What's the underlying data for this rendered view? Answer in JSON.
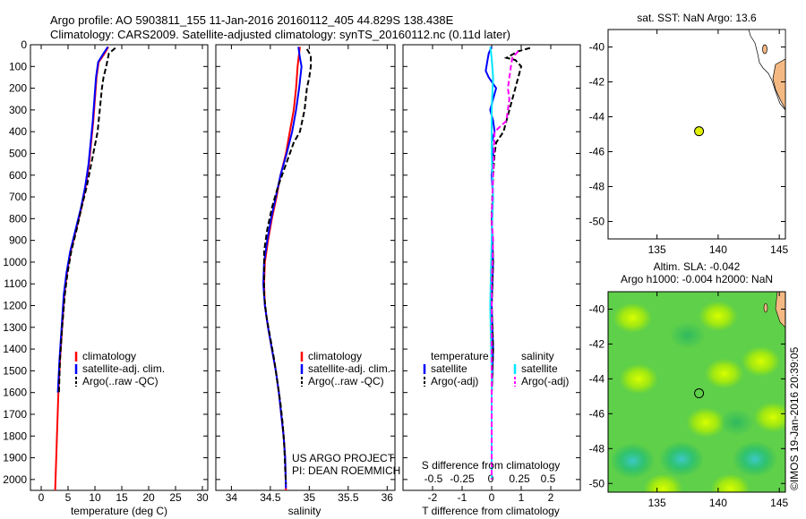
{
  "header": {
    "line1": "Argo profile: AO 5903811_155 11-Jan-2016 20160112_405 44.829S 138.438E",
    "line2": "Climatology: CARS2009. Satellite-adjusted climatology: synTS_20160112.nc (0.11d later)"
  },
  "colors": {
    "climatology": "#ff0000",
    "satellite": "#0000ff",
    "argo": "#000000",
    "satellite_s": "#00e5ff",
    "argo_s": "#ff00ff",
    "land": "#f4b983",
    "marker": "#e0f000"
  },
  "chart_data": [
    {
      "type": "line",
      "id": "temperature",
      "xlabel": "temperature (deg C)",
      "ylabel": "",
      "xlim": [
        -2,
        31
      ],
      "ylim": [
        2050,
        0
      ],
      "xticks": [
        0,
        5,
        10,
        15,
        20,
        25,
        30
      ],
      "yticks": [
        0,
        100,
        200,
        300,
        400,
        500,
        600,
        700,
        800,
        900,
        1000,
        1100,
        1200,
        1300,
        1400,
        1500,
        1600,
        1700,
        1800,
        1900,
        2000
      ],
      "legend": [
        "climatology",
        "satellite-adj. clim.",
        "Argo(..raw -QC)"
      ],
      "series": [
        {
          "name": "climatology",
          "style": "solid",
          "color": "climatology",
          "points": [
            [
              12.5,
              10
            ],
            [
              11.8,
              40
            ],
            [
              10.7,
              80
            ],
            [
              10.3,
              150
            ],
            [
              10.0,
              250
            ],
            [
              9.7,
              350
            ],
            [
              9.3,
              450
            ],
            [
              8.9,
              550
            ],
            [
              8.3,
              650
            ],
            [
              7.5,
              750
            ],
            [
              6.5,
              850
            ],
            [
              5.5,
              950
            ],
            [
              4.8,
              1050
            ],
            [
              4.3,
              1150
            ],
            [
              3.9,
              1300
            ],
            [
              3.5,
              1450
            ],
            [
              3.2,
              1600
            ],
            [
              3.0,
              1750
            ],
            [
              2.8,
              1900
            ],
            [
              2.6,
              2050
            ]
          ]
        },
        {
          "name": "satellite-adj. clim.",
          "style": "solid",
          "color": "satellite",
          "points": [
            [
              12.4,
              10
            ],
            [
              11.6,
              40
            ],
            [
              10.6,
              80
            ],
            [
              10.2,
              150
            ],
            [
              9.9,
              250
            ],
            [
              9.6,
              350
            ],
            [
              9.2,
              450
            ],
            [
              8.8,
              550
            ],
            [
              8.2,
              650
            ],
            [
              7.4,
              750
            ],
            [
              6.4,
              850
            ],
            [
              5.4,
              950
            ],
            [
              4.7,
              1050
            ],
            [
              4.2,
              1150
            ],
            [
              3.8,
              1300
            ],
            [
              3.4,
              1450
            ],
            [
              3.1,
              1600
            ]
          ]
        },
        {
          "name": "Argo(..raw -QC)",
          "style": "dashed",
          "color": "argo",
          "points": [
            [
              13.8,
              15
            ],
            [
              12.6,
              40
            ],
            [
              12.1,
              100
            ],
            [
              11.6,
              150
            ],
            [
              11.3,
              200
            ],
            [
              10.9,
              300
            ],
            [
              10.5,
              400
            ],
            [
              10.1,
              450
            ],
            [
              9.3,
              550
            ],
            [
              8.5,
              650
            ],
            [
              7.5,
              750
            ],
            [
              6.6,
              850
            ],
            [
              5.6,
              950
            ],
            [
              4.9,
              1050
            ],
            [
              4.4,
              1150
            ],
            [
              3.9,
              1300
            ],
            [
              3.5,
              1450
            ],
            [
              3.3,
              1600
            ]
          ]
        }
      ]
    },
    {
      "type": "line",
      "id": "salinity",
      "xlabel": "salinity",
      "ylabel": "",
      "xlim": [
        33.8,
        36.1
      ],
      "ylim": [
        2050,
        0
      ],
      "xticks": [
        34,
        34.5,
        35,
        35.5,
        36
      ],
      "legend": [
        "climatology",
        "satellite-adj. clim.",
        "Argo(..raw -QC)"
      ],
      "series": [
        {
          "name": "climatology",
          "style": "solid",
          "color": "climatology",
          "points": [
            [
              34.88,
              10
            ],
            [
              34.85,
              100
            ],
            [
              34.83,
              200
            ],
            [
              34.8,
              300
            ],
            [
              34.75,
              400
            ],
            [
              34.7,
              500
            ],
            [
              34.63,
              600
            ],
            [
              34.58,
              700
            ],
            [
              34.52,
              800
            ],
            [
              34.47,
              900
            ],
            [
              34.43,
              1000
            ],
            [
              34.42,
              1100
            ],
            [
              34.43,
              1200
            ],
            [
              34.47,
              1300
            ],
            [
              34.52,
              1400
            ],
            [
              34.57,
              1500
            ],
            [
              34.61,
              1600
            ],
            [
              34.64,
              1700
            ],
            [
              34.67,
              1800
            ],
            [
              34.69,
              1900
            ],
            [
              34.7,
              2050
            ]
          ]
        },
        {
          "name": "satellite-adj. clim.",
          "style": "solid",
          "color": "satellite",
          "points": [
            [
              34.86,
              10
            ],
            [
              34.88,
              60
            ],
            [
              34.9,
              100
            ],
            [
              34.87,
              200
            ],
            [
              34.83,
              300
            ],
            [
              34.78,
              400
            ],
            [
              34.71,
              500
            ],
            [
              34.63,
              600
            ],
            [
              34.57,
              700
            ],
            [
              34.51,
              800
            ],
            [
              34.46,
              900
            ],
            [
              34.42,
              1000
            ],
            [
              34.41,
              1100
            ],
            [
              34.43,
              1200
            ],
            [
              34.47,
              1300
            ],
            [
              34.52,
              1400
            ],
            [
              34.57,
              1500
            ],
            [
              34.61,
              1600
            ],
            [
              34.64,
              1700
            ],
            [
              34.67,
              1800
            ],
            [
              34.69,
              1900
            ],
            [
              34.7,
              2040
            ]
          ]
        },
        {
          "name": "Argo(..raw -QC)",
          "style": "dashed",
          "color": "argo",
          "points": [
            [
              34.97,
              20
            ],
            [
              35.02,
              50
            ],
            [
              35.02,
              100
            ],
            [
              35.0,
              150
            ],
            [
              34.97,
              200
            ],
            [
              34.94,
              300
            ],
            [
              34.88,
              400
            ],
            [
              34.8,
              450
            ],
            [
              34.7,
              550
            ],
            [
              34.6,
              650
            ],
            [
              34.52,
              750
            ],
            [
              34.46,
              850
            ],
            [
              34.42,
              950
            ],
            [
              34.42,
              1050
            ],
            [
              34.42,
              1150
            ],
            [
              34.45,
              1250
            ],
            [
              34.5,
              1350
            ],
            [
              34.55,
              1450
            ],
            [
              34.59,
              1550
            ],
            [
              34.63,
              1650
            ],
            [
              34.66,
              1750
            ],
            [
              34.68,
              1850
            ],
            [
              34.69,
              1950
            ],
            [
              34.7,
              2020
            ]
          ]
        }
      ]
    },
    {
      "type": "line",
      "id": "difference",
      "xlabel": "T difference from climatology",
      "x2label": "S difference from climatology",
      "xlim": [
        -3,
        3
      ],
      "ylim": [
        2050,
        0
      ],
      "xticks": [
        -2,
        -1,
        0,
        1,
        2
      ],
      "xticklabels": [
        "-2",
        "-1",
        "0",
        "1",
        "2"
      ],
      "x2ticklabels": [
        "-0.5",
        "-0.25",
        "0",
        "0.25",
        "0.5"
      ],
      "legend_groups": [
        {
          "title": "temperature",
          "items": [
            "satellite",
            "Argo(-adj)"
          ]
        },
        {
          "title": "salinity",
          "items": [
            "satellite",
            "Argo(-adj)"
          ]
        }
      ],
      "series": [
        {
          "name": "temperature satellite",
          "style": "solid",
          "color": "satellite",
          "points": [
            [
              0.0,
              10
            ],
            [
              -0.1,
              40
            ],
            [
              -0.15,
              80
            ],
            [
              -0.2,
              120
            ],
            [
              -0.1,
              150
            ],
            [
              0.15,
              200
            ],
            [
              0.05,
              250
            ],
            [
              -0.05,
              300
            ],
            [
              0.05,
              350
            ],
            [
              0.1,
              400
            ],
            [
              0.0,
              450
            ],
            [
              0.05,
              500
            ],
            [
              0.0,
              600
            ],
            [
              0.05,
              700
            ],
            [
              0.0,
              800
            ],
            [
              0.05,
              1000
            ],
            [
              0.0,
              1200
            ],
            [
              0.05,
              1400
            ],
            [
              0.0,
              1600
            ]
          ]
        },
        {
          "name": "temperature Argo(-adj)",
          "style": "dashed",
          "color": "argo",
          "points": [
            [
              1.3,
              15
            ],
            [
              0.9,
              30
            ],
            [
              0.5,
              60
            ],
            [
              0.8,
              70
            ],
            [
              1.0,
              100
            ],
            [
              0.9,
              150
            ],
            [
              0.8,
              200
            ],
            [
              0.6,
              300
            ],
            [
              0.5,
              350
            ],
            [
              0.4,
              400
            ],
            [
              0.15,
              450
            ],
            [
              0.1,
              500
            ],
            [
              0.05,
              600
            ],
            [
              0.0,
              800
            ],
            [
              0.05,
              1000
            ],
            [
              0.0,
              1200
            ],
            [
              0.05,
              1400
            ],
            [
              0.0,
              1600
            ]
          ]
        },
        {
          "name": "salinity satellite",
          "style": "solid",
          "color": "satellite_s",
          "points": [
            [
              -0.05,
              10
            ],
            [
              0.0,
              60
            ],
            [
              0.05,
              150
            ],
            [
              0.0,
              300
            ],
            [
              0.0,
              500
            ],
            [
              0.05,
              700
            ],
            [
              0.0,
              900
            ],
            [
              -0.05,
              1200
            ],
            [
              0.0,
              1500
            ],
            [
              0.0,
              2000
            ]
          ]
        },
        {
          "name": "salinity Argo(-adj)",
          "style": "dashed",
          "color": "argo_s",
          "points": [
            [
              0.9,
              30
            ],
            [
              0.7,
              60
            ],
            [
              0.65,
              100
            ],
            [
              0.6,
              150
            ],
            [
              0.55,
              200
            ],
            [
              0.6,
              250
            ],
            [
              0.55,
              300
            ],
            [
              0.5,
              350
            ],
            [
              0.1,
              400
            ],
            [
              0.05,
              600
            ],
            [
              0.0,
              800
            ],
            [
              0.05,
              900
            ],
            [
              0.0,
              1100
            ],
            [
              0.0,
              1600
            ],
            [
              0.0,
              2000
            ]
          ]
        }
      ]
    },
    {
      "type": "scatter",
      "id": "position-map",
      "title": "sat. SST: NaN Argo: 13.6",
      "xlim": [
        131,
        145.5
      ],
      "ylim": [
        -51,
        -39
      ],
      "xticks": [
        135,
        140,
        145
      ],
      "yticks": [
        -40,
        -42,
        -44,
        -46,
        -48,
        -50
      ],
      "points": [
        {
          "lon": 138.438,
          "lat": -44.829
        }
      ]
    },
    {
      "type": "heatmap",
      "id": "sla-map",
      "title1": "Altim. SLA: -0.042",
      "title2": "Argo h1000: -0.004 h2000: NaN",
      "xlim": [
        131,
        145.5
      ],
      "ylim": [
        -50.5,
        -39
      ],
      "xticks": [
        135,
        140,
        145
      ],
      "yticks": [
        -40,
        -42,
        -44,
        -46,
        -48,
        -50
      ],
      "points": [
        {
          "lon": 138.438,
          "lat": -44.829
        }
      ],
      "blobs": [
        {
          "lon": 133,
          "lat": -48.7,
          "level": "low"
        },
        {
          "lon": 137,
          "lat": -48.6,
          "level": "low"
        },
        {
          "lon": 143,
          "lat": -48.6,
          "level": "low"
        },
        {
          "lon": 140.5,
          "lat": -43.7,
          "level": "high"
        },
        {
          "lon": 140,
          "lat": -40.4,
          "level": "high"
        },
        {
          "lon": 133,
          "lat": -40.5,
          "level": "high"
        },
        {
          "lon": 133.5,
          "lat": -44,
          "level": "high"
        },
        {
          "lon": 143.5,
          "lat": -43,
          "level": "high"
        },
        {
          "lon": 139,
          "lat": -46.5,
          "level": "high"
        },
        {
          "lon": 144.5,
          "lat": -46.2,
          "level": "high"
        },
        {
          "lon": 141,
          "lat": -50.3,
          "level": "high"
        },
        {
          "lon": 135.5,
          "lat": -50.3,
          "level": "high"
        },
        {
          "lon": 137.5,
          "lat": -41.5,
          "level": "mid-low"
        },
        {
          "lon": 141.5,
          "lat": -46.5,
          "level": "mid-low"
        }
      ]
    }
  ],
  "credits": {
    "project": "US ARGO PROJECT",
    "pi": "PI: DEAN ROEMMICH",
    "stamp": "©IMOS 19-Jan-2016 20:39:05"
  }
}
